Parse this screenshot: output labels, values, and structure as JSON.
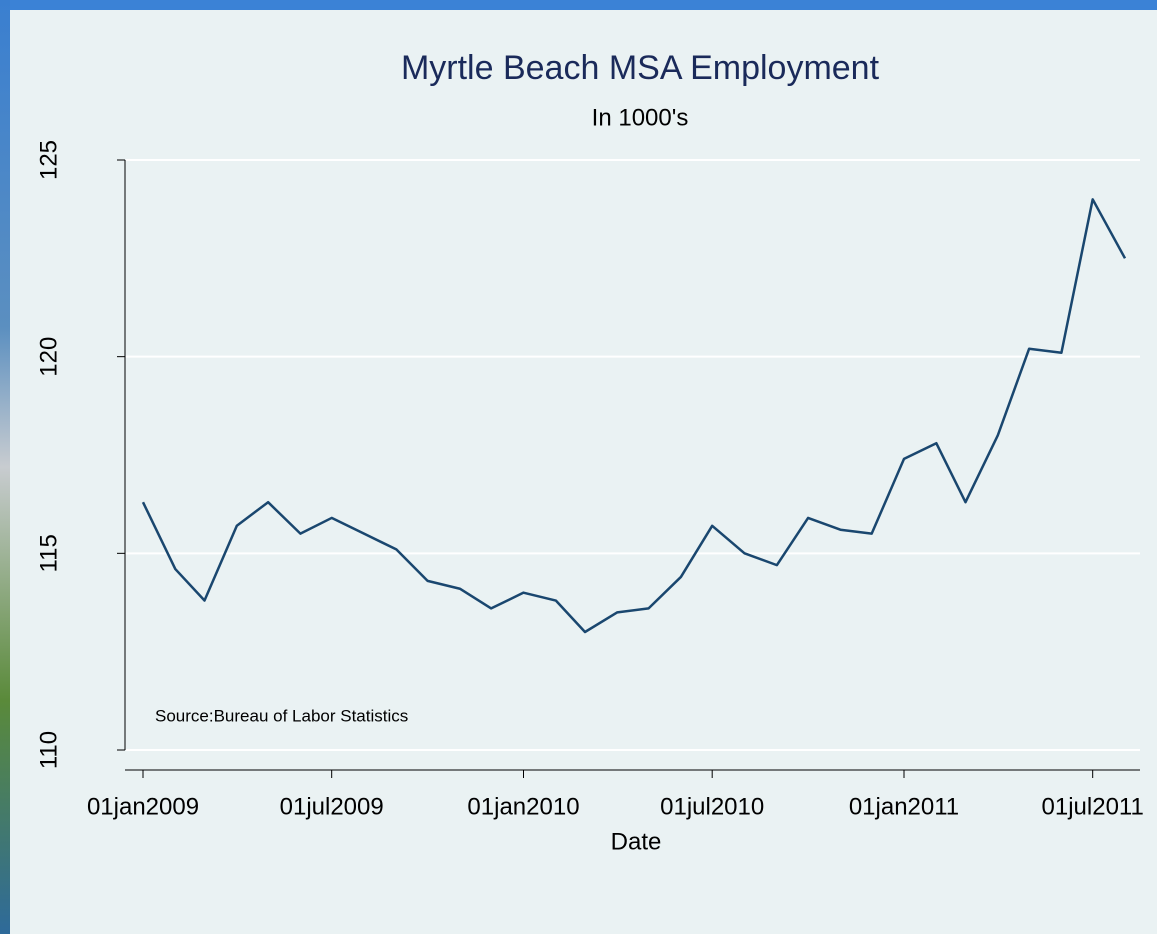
{
  "chart_data": {
    "type": "line",
    "title": "Myrtle Beach MSA Employment",
    "subtitle": "In 1000's",
    "x_label": "Date",
    "note": "Source:Bureau of Labor Statistics",
    "x": [
      "01jan2009",
      "01feb2009",
      "01mar2009",
      "01apr2009",
      "01may2009",
      "01jun2009",
      "01jul2009",
      "01aug2009",
      "01sep2009",
      "01oct2009",
      "01nov2009",
      "01dec2009",
      "01jan2010",
      "01feb2010",
      "01mar2010",
      "01apr2010",
      "01may2010",
      "01jun2010",
      "01jul2010",
      "01aug2010",
      "01sep2010",
      "01oct2010",
      "01nov2010",
      "01dec2010",
      "01jan2011",
      "01feb2011",
      "01mar2011",
      "01apr2011",
      "01may2011",
      "01jun2011",
      "01jul2011",
      "01aug2011"
    ],
    "series": [
      {
        "color": "#1a476f",
        "values": [
          116.3,
          114.6,
          113.8,
          115.7,
          116.3,
          115.5,
          115.9,
          115.5,
          115.1,
          114.3,
          114.1,
          113.6,
          114.0,
          113.8,
          113.0,
          113.5,
          113.6,
          114.4,
          115.7,
          115.0,
          114.7,
          115.9,
          115.6,
          115.5,
          117.4,
          117.8,
          116.3,
          118.0,
          120.2,
          120.1,
          124.0,
          122.5
        ]
      }
    ],
    "xlim": [
      "01jan2009",
      "01aug2011"
    ],
    "xticks": [
      "01jan2009",
      "01jul2009",
      "01jan2010",
      "01jul2010",
      "01jan2011",
      "01jul2011"
    ],
    "ylim": [
      110,
      125
    ],
    "yticks": [
      110,
      115,
      120,
      125
    ],
    "grid": true
  }
}
